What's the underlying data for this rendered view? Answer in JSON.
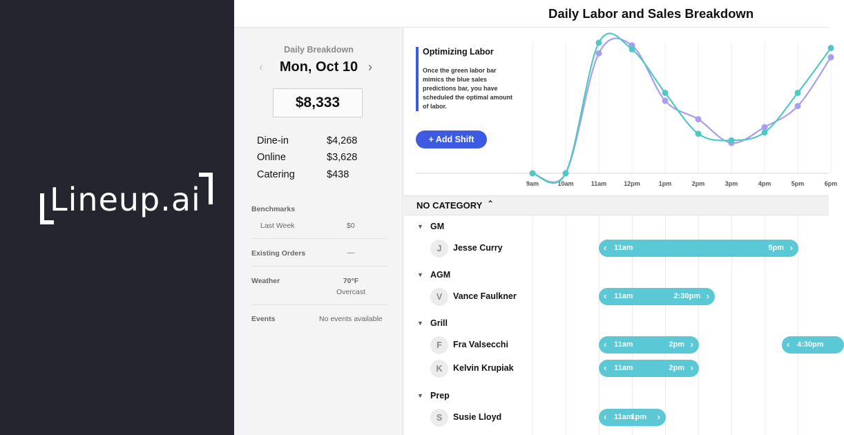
{
  "brand": {
    "name": "Lineup.ai"
  },
  "header": {
    "title": "Daily Labor and Sales Breakdown"
  },
  "breakdown": {
    "label": "Daily Breakdown",
    "date": "Mon, Oct 10",
    "prev_icon": "‹",
    "next_icon": "›",
    "total": "$8,333",
    "sales": [
      {
        "label": "Dine-in",
        "amount": "$4,268"
      },
      {
        "label": "Online",
        "amount": "$3,628"
      },
      {
        "label": "Catering",
        "amount": "$438"
      }
    ],
    "benchmarks_label": "Benchmarks",
    "last_week_label": "Last Week",
    "last_week_value": "$0",
    "existing_orders_label": "Existing Orders",
    "existing_orders_value": "—",
    "weather_label": "Weather",
    "weather_temp": "70°F",
    "weather_desc": "Overcast",
    "events_label": "Events",
    "events_value": "No events available"
  },
  "info": {
    "title": "Optimizing Labor",
    "text": "Once the green labor bar mimics the blue sales predictions bar, you have scheduled the optimal amount of labor.",
    "add_shift_label": "+ Add Shift"
  },
  "colors": {
    "accent": "#3d5be0",
    "labor": "#4fc8c6",
    "sales": "#a79ef0",
    "shift": "#5ac8d5"
  },
  "chart_data": {
    "type": "line",
    "x": [
      "9am",
      "10am",
      "11am",
      "12pm",
      "1pm",
      "2pm",
      "3pm",
      "4pm",
      "5pm",
      "6pm"
    ],
    "series": [
      {
        "name": "",
        "values": [
          0,
          0,
          0.91,
          0.97,
          0.55,
          0.41,
          0.23,
          0.35,
          0.51,
          0.88
        ]
      },
      {
        "name": "",
        "values": [
          0,
          0,
          0.99,
          0.94,
          0.61,
          0.3,
          0.25,
          0.31,
          0.61,
          0.95
        ]
      }
    ],
    "ylim": [
      0,
      1
    ]
  },
  "category": {
    "title": "NO CATEGORY",
    "chevron": "⌃"
  },
  "schedule": {
    "roles": [
      {
        "name": "GM",
        "employees": [
          {
            "initial": "J",
            "name": "Jesse Curry",
            "shifts": [
              {
                "start": "11am",
                "end": "5pm"
              }
            ]
          }
        ]
      },
      {
        "name": "AGM",
        "employees": [
          {
            "initial": "V",
            "name": "Vance Faulkner",
            "shifts": [
              {
                "start": "11am",
                "end": "2:30pm"
              }
            ]
          }
        ]
      },
      {
        "name": "Grill",
        "employees": [
          {
            "initial": "F",
            "name": "Fra Valsecchi",
            "shifts": [
              {
                "start": "11am",
                "end": "2pm"
              },
              {
                "start": "4:30pm",
                "end": ""
              }
            ]
          },
          {
            "initial": "K",
            "name": "Kelvin Krupiak",
            "shifts": [
              {
                "start": "11am",
                "end": "2pm"
              }
            ]
          }
        ]
      },
      {
        "name": "Prep",
        "employees": [
          {
            "initial": "S",
            "name": "Susie Lloyd",
            "shifts": [
              {
                "start": "11am",
                "end": "1pm"
              }
            ]
          }
        ]
      }
    ]
  }
}
